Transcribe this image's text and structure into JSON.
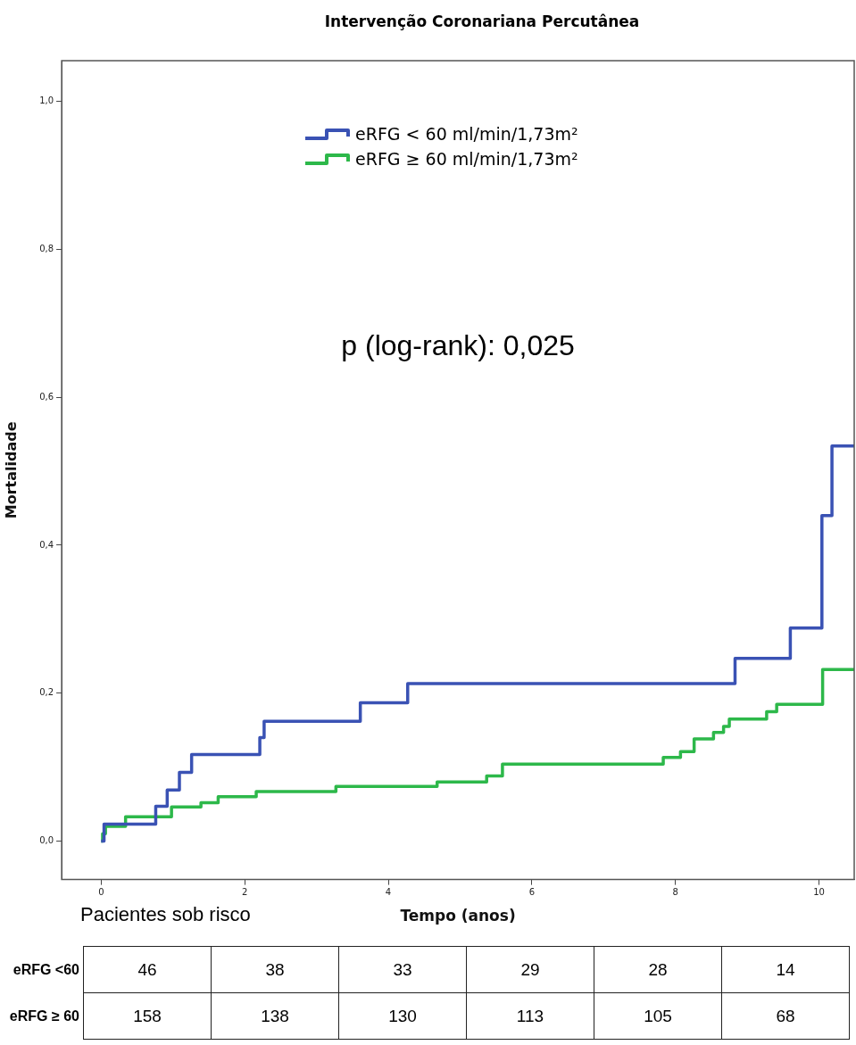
{
  "chart_data": {
    "type": "step",
    "title": "Intervenção Coronariana Percutânea",
    "xlabel": "Tempo (anos)",
    "ylabel": "Mortalidade",
    "xlim": [
      -0.55,
      10.49
    ],
    "xticks": [
      0,
      2,
      4,
      6,
      8,
      10
    ],
    "ylim": [
      -0.052,
      1.055
    ],
    "yticks": [
      {
        "value": 0,
        "label": "0,0"
      },
      {
        "value": 0.2,
        "label": "0,2"
      },
      {
        "value": 0.4,
        "label": "0,4"
      },
      {
        "value": 0.6,
        "label": "0,6"
      },
      {
        "value": 0.8,
        "label": "0,8"
      },
      {
        "value": 1,
        "label": "1,0"
      }
    ],
    "grid": false,
    "legend": "top",
    "marker": "none",
    "line_style": "solid",
    "series": [
      {
        "name": "eRFG < 60 ml/min/1,73m²",
        "color": "#3a52b4",
        "x": [
          0,
          0.04,
          0.76,
          0.92,
          1.09,
          1.26,
          2.21,
          2.27,
          3.61,
          4.27,
          8.83,
          9.6,
          10.04,
          10.18,
          10.49
        ],
        "values": [
          0,
          0.023,
          0.047,
          0.069,
          0.093,
          0.117,
          0.14,
          0.162,
          0.187,
          0.213,
          0.247,
          0.288,
          0.44,
          0.534,
          0.534
        ]
      },
      {
        "name": "eRFG ≥ 60 ml/min/1,73m²",
        "color": "#2db84a",
        "x": [
          0,
          0.02,
          0.06,
          0.34,
          0.98,
          1.39,
          1.63,
          2.16,
          3.27,
          4.68,
          5.37,
          5.59,
          7.83,
          8.07,
          8.26,
          8.53,
          8.67,
          8.75,
          9.27,
          9.41,
          10.05,
          10.49
        ],
        "values": [
          0,
          0.01,
          0.02,
          0.033,
          0.046,
          0.052,
          0.06,
          0.067,
          0.074,
          0.08,
          0.088,
          0.104,
          0.113,
          0.121,
          0.138,
          0.147,
          0.155,
          0.165,
          0.175,
          0.185,
          0.232,
          0.232
        ]
      }
    ],
    "annotations": [
      "p (log-rank): 0,025",
      "Pacientes sob risco",
      "eRFG <60",
      "46",
      "38",
      "33",
      "29",
      "28",
      "14",
      "eRFG ≥ 60",
      "158",
      "138",
      "130",
      "113",
      "105",
      "68"
    ]
  }
}
